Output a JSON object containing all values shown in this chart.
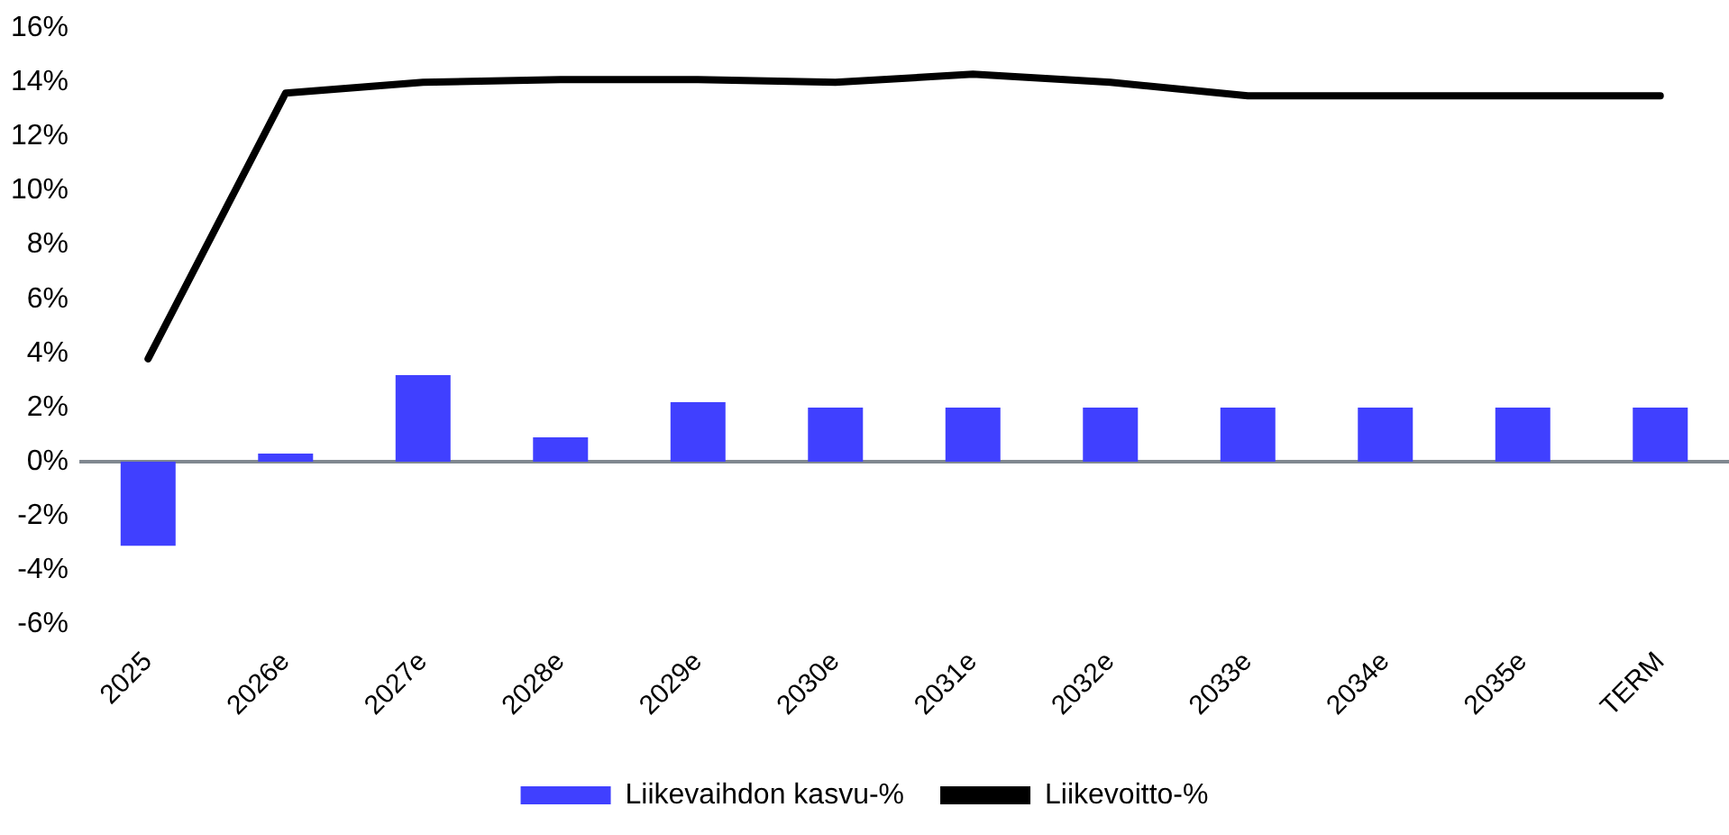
{
  "chart_data": {
    "type": "bar",
    "categories": [
      "2025",
      "2026e",
      "2027e",
      "2028e",
      "2029e",
      "2030e",
      "2031e",
      "2032e",
      "2033e",
      "2034e",
      "2035e",
      "TERM"
    ],
    "series": [
      {
        "name": "Liikevaihdon kasvu-%",
        "color": "#4040ff",
        "values": [
          -3.1,
          0.3,
          3.2,
          0.9,
          2.2,
          2.0,
          2.0,
          2.0,
          2.0,
          2.0,
          2.0,
          2.0
        ]
      },
      {
        "name": "Liikevoitto-%",
        "type": "line",
        "color": "#000000",
        "values": [
          3.8,
          13.6,
          14.0,
          14.1,
          14.1,
          14.0,
          14.3,
          14.0,
          13.5,
          13.5,
          13.5,
          13.5
        ]
      }
    ],
    "ylim": [
      -6,
      16
    ],
    "yticks": [
      {
        "value": -6,
        "label": "-6%"
      },
      {
        "value": -4,
        "label": "-4%"
      },
      {
        "value": -2,
        "label": "-2%"
      },
      {
        "value": 0,
        "label": "0%"
      },
      {
        "value": 2,
        "label": "2%"
      },
      {
        "value": 4,
        "label": "4%"
      },
      {
        "value": 6,
        "label": "6%"
      },
      {
        "value": 8,
        "label": "8%"
      },
      {
        "value": 10,
        "label": "10%"
      },
      {
        "value": 12,
        "label": "12%"
      },
      {
        "value": 14,
        "label": "14%"
      },
      {
        "value": 16,
        "label": "16%"
      }
    ],
    "ref_lines": [
      {
        "axis": "y",
        "value": 0,
        "color": "#808890"
      }
    ],
    "grid": false,
    "legend": "bottom",
    "marker": "none",
    "line_style": "solid"
  }
}
